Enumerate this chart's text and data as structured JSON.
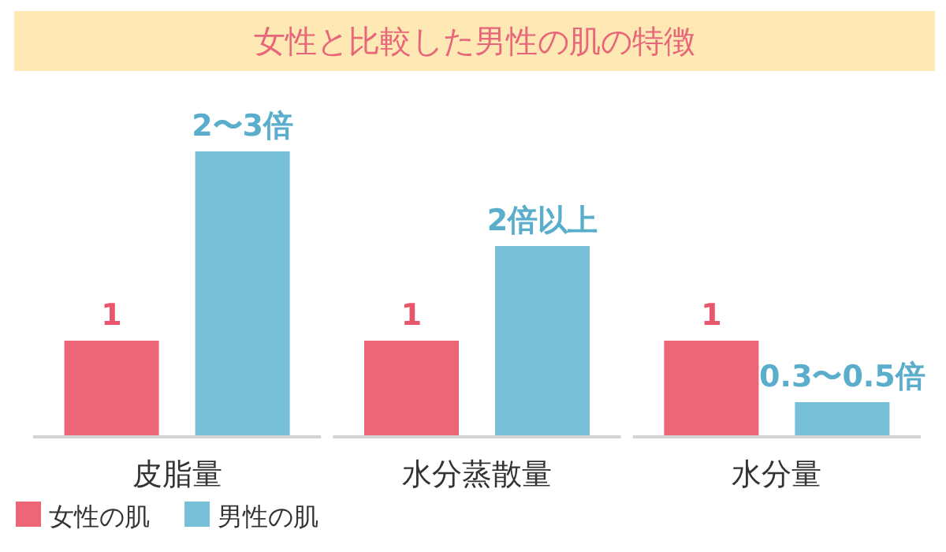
{
  "chart_data": {
    "type": "bar",
    "title": "女性と比較した男性の肌の特徴",
    "categories": [
      "皮脂量",
      "水分蒸散量",
      "水分量"
    ],
    "ylim": [
      0,
      3
    ],
    "tick_labels": "x",
    "legend": "bottom left",
    "grid": false,
    "series": [
      {
        "name": "女性の肌",
        "color": "#ec6678",
        "values": [
          1,
          1,
          1
        ],
        "value_labels": [
          "1",
          "1",
          "1"
        ]
      },
      {
        "name": "男性の肌",
        "color": "#77c0d8",
        "values": [
          3,
          2,
          0.35
        ],
        "value_labels": [
          "2〜3倍",
          "2倍以上",
          "0.3〜0.5倍"
        ]
      }
    ]
  }
}
